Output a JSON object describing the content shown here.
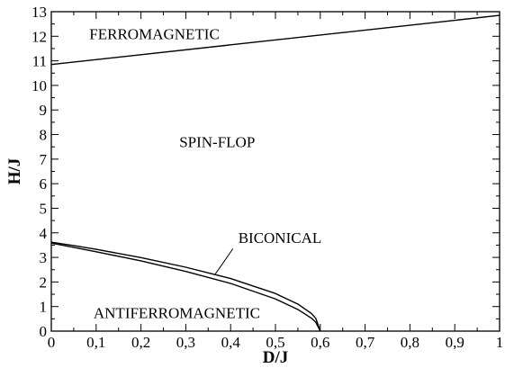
{
  "chart_data": {
    "type": "line",
    "title": "",
    "xlabel": "D/J",
    "ylabel": "H/J",
    "xlim": [
      0,
      1
    ],
    "ylim": [
      0,
      13
    ],
    "x_ticks": [
      "0",
      "0,1",
      "0,2",
      "0,3",
      "0,4",
      "0,5",
      "0,6",
      "0,7",
      "0,8",
      "0,9",
      "1"
    ],
    "y_ticks": [
      "0",
      "1",
      "2",
      "3",
      "4",
      "5",
      "6",
      "7",
      "8",
      "9",
      "10",
      "11",
      "12",
      "13"
    ],
    "grid": false,
    "series": [
      {
        "x": [
          0,
          1
        ],
        "y": [
          10.85,
          12.85
        ]
      },
      {
        "x": [
          0,
          0.05,
          0.1,
          0.2,
          0.3,
          0.4,
          0.5,
          0.55,
          0.58,
          0.59,
          0.6
        ],
        "y": [
          3.62,
          3.48,
          3.33,
          2.99,
          2.6,
          2.14,
          1.53,
          1.1,
          0.72,
          0.52,
          0.0
        ]
      },
      {
        "x": [
          0,
          0.05,
          0.1,
          0.2,
          0.3,
          0.4,
          0.5,
          0.55,
          0.58,
          0.59,
          0.6
        ],
        "y": [
          3.58,
          3.41,
          3.23,
          2.86,
          2.43,
          1.94,
          1.31,
          0.88,
          0.53,
          0.36,
          0.0
        ]
      }
    ],
    "annotations": [
      {
        "text": "FERROMAGNETIC",
        "x": 0.23,
        "y": 12.1
      },
      {
        "text": "SPIN-FLOP",
        "x": 0.37,
        "y": 7.7
      },
      {
        "text": "BICONICAL",
        "x": 0.51,
        "y": 3.8
      },
      {
        "text": "ANTIFERROMAGNETIC",
        "x": 0.28,
        "y": 0.75
      }
    ]
  }
}
